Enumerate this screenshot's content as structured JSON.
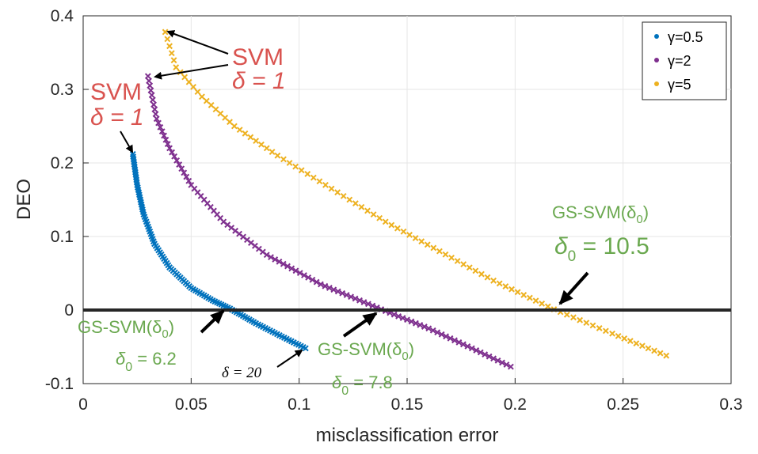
{
  "chart_data": {
    "type": "scatter",
    "xlabel": "misclassification error",
    "ylabel": "DEO",
    "xlim": [
      0,
      0.3
    ],
    "ylim": [
      -0.1,
      0.4
    ],
    "grid": true,
    "legend_position": "top-right",
    "x_ticks": [
      "0",
      "0.05",
      "0.1",
      "0.15",
      "0.2",
      "0.25",
      "0.3"
    ],
    "x_tick_values": [
      0,
      0.05,
      0.1,
      0.15,
      0.2,
      0.25,
      0.3
    ],
    "y_ticks": [
      "-0.1",
      "0",
      "0.1",
      "0.2",
      "0.3",
      "0.4"
    ],
    "y_tick_values": [
      -0.1,
      0,
      0.1,
      0.2,
      0.3,
      0.4
    ],
    "series": [
      {
        "name": "γ=0.5",
        "color": "#0072BD",
        "marker_density": "dense",
        "points": [
          [
            0.023,
            0.212
          ],
          [
            0.025,
            0.17
          ],
          [
            0.028,
            0.13
          ],
          [
            0.033,
            0.09
          ],
          [
            0.04,
            0.058
          ],
          [
            0.05,
            0.03
          ],
          [
            0.06,
            0.013
          ],
          [
            0.068,
            0.002
          ],
          [
            0.08,
            -0.018
          ],
          [
            0.092,
            -0.036
          ],
          [
            0.103,
            -0.052
          ]
        ]
      },
      {
        "name": "γ=2",
        "color": "#7E2F8E",
        "marker_density": "medium",
        "points": [
          [
            0.03,
            0.318
          ],
          [
            0.034,
            0.26
          ],
          [
            0.04,
            0.22
          ],
          [
            0.05,
            0.17
          ],
          [
            0.065,
            0.12
          ],
          [
            0.085,
            0.075
          ],
          [
            0.11,
            0.035
          ],
          [
            0.138,
            0.001
          ],
          [
            0.16,
            -0.025
          ],
          [
            0.18,
            -0.052
          ],
          [
            0.198,
            -0.077
          ]
        ]
      },
      {
        "name": "γ=5",
        "color": "#EDB120",
        "marker_density": "sparse",
        "points": [
          [
            0.038,
            0.378
          ],
          [
            0.043,
            0.33
          ],
          [
            0.055,
            0.29
          ],
          [
            0.07,
            0.25
          ],
          [
            0.09,
            0.21
          ],
          [
            0.115,
            0.165
          ],
          [
            0.14,
            0.12
          ],
          [
            0.165,
            0.08
          ],
          [
            0.19,
            0.04
          ],
          [
            0.218,
            0.001
          ],
          [
            0.245,
            -0.032
          ],
          [
            0.27,
            -0.062
          ]
        ]
      }
    ],
    "reference_line": {
      "y": 0,
      "color": "#262626"
    },
    "annotations": {
      "svm_a": {
        "label": "SVM",
        "delta_text": "δ = 1"
      },
      "svm_b": {
        "label": "SVM",
        "delta_text": "δ = 1"
      },
      "gs_label": "GS-SVM(δ",
      "gs_sub": "0",
      "gs_close": ")",
      "delta0_prefix": "δ",
      "delta0_sub": "0",
      "gs_values": [
        " = 6.2",
        " = 7.8",
        " = 10.5"
      ],
      "delta20": "δ = 20"
    }
  }
}
